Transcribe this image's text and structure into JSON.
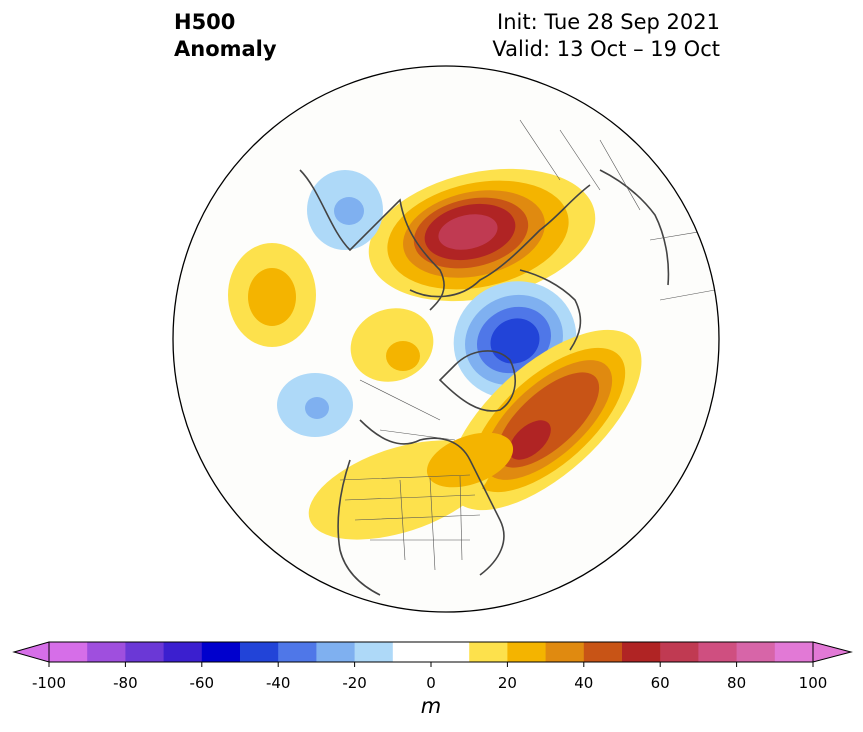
{
  "title": {
    "line1": "H500",
    "line2": "Anomaly"
  },
  "info": {
    "init": "Init: Tue 28 Sep 2021",
    "valid": "Valid: 13 Oct – 19 Oct"
  },
  "colorbar": {
    "unit": "m",
    "tick_labels": [
      "-100",
      "-80",
      "-60",
      "-40",
      "-20",
      "0",
      "20",
      "40",
      "60",
      "80",
      "100"
    ],
    "colors": [
      "#d66ee8",
      "#9f4fde",
      "#6b38d6",
      "#3b1fcf",
      "#0000cd",
      "#2244d8",
      "#4f77e8",
      "#7fb0f0",
      "#aed9f8",
      "#ffffff",
      "#ffffff",
      "#fde14c",
      "#f4b400",
      "#e08a10",
      "#c85416",
      "#b02424",
      "#c03a52",
      "#cf4f80",
      "#d765a8",
      "#e279d6"
    ]
  },
  "colors": {
    "coast": "#444444",
    "land_edge": "#555555"
  }
}
